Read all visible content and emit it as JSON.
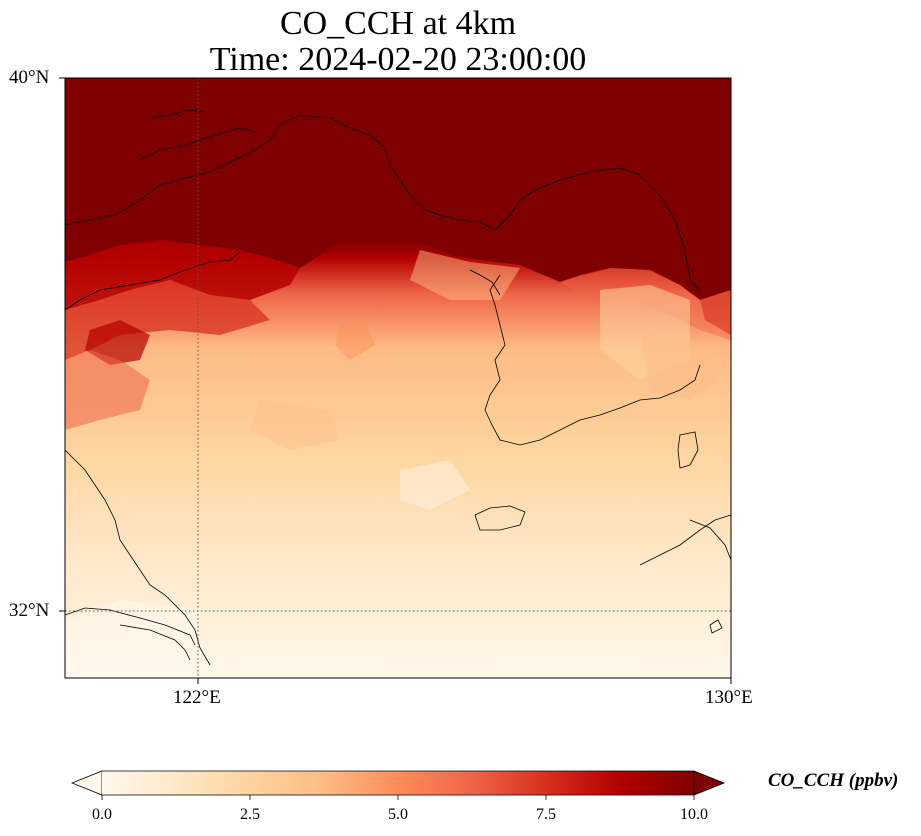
{
  "title": {
    "line1": "CO_CCH at 4km",
    "line2": "Time: 2024-02-20 23:00:00"
  },
  "map": {
    "lat_ticks": [
      "40°N",
      "32°N"
    ],
    "lon_ticks": [
      "122°E",
      "130°E"
    ],
    "lon_range": [
      120,
      130
    ],
    "lat_range": [
      31,
      40
    ]
  },
  "colorbar": {
    "label": "CO_CCH (ppbv)",
    "ticks": [
      "0.0",
      "2.5",
      "5.0",
      "7.5",
      "10.0"
    ],
    "min": 0,
    "max": 10,
    "extend": "both",
    "colors": [
      "#fff7ec",
      "#fee8c8",
      "#fdd49e",
      "#fdbb84",
      "#fc8d59",
      "#ef6548",
      "#d7301f",
      "#b30000",
      "#7f0000"
    ]
  }
}
